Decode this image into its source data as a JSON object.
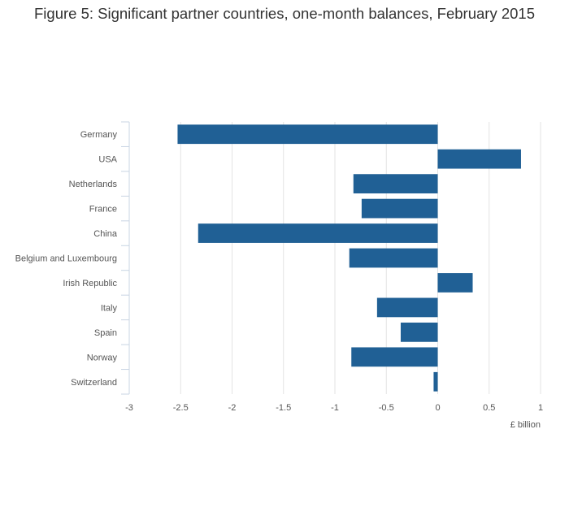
{
  "title": "Figure 5: Significant partner countries, one-month balances, February 2015",
  "colors": {
    "bar": "#206095",
    "grid": "#e3e3e3",
    "axis": "#c8d4e3",
    "text": "#555555"
  },
  "chart_data": {
    "type": "bar",
    "orientation": "horizontal",
    "title": "Figure 5: Significant partner countries, one-month balances, February 2015",
    "xlabel": "£ billion",
    "ylabel": "",
    "xlim": [
      -3,
      1
    ],
    "xticks": [
      -3,
      -2.5,
      -2,
      -1.5,
      -1,
      -0.5,
      0,
      0.5,
      1
    ],
    "xtick_labels": [
      "-3",
      "-2.5",
      "-2",
      "-1.5",
      "-1",
      "-0.5",
      "0",
      "0.5",
      "1"
    ],
    "grid": true,
    "categories": [
      "Germany",
      "USA",
      "Netherlands",
      "France",
      "China",
      "Belgium and Luxembourg",
      "Irish Republic",
      "Italy",
      "Spain",
      "Norway",
      "Switzerland"
    ],
    "values": [
      -2.53,
      0.81,
      -0.82,
      -0.74,
      -2.33,
      -0.86,
      0.34,
      -0.59,
      -0.36,
      -0.84,
      -0.04
    ]
  }
}
